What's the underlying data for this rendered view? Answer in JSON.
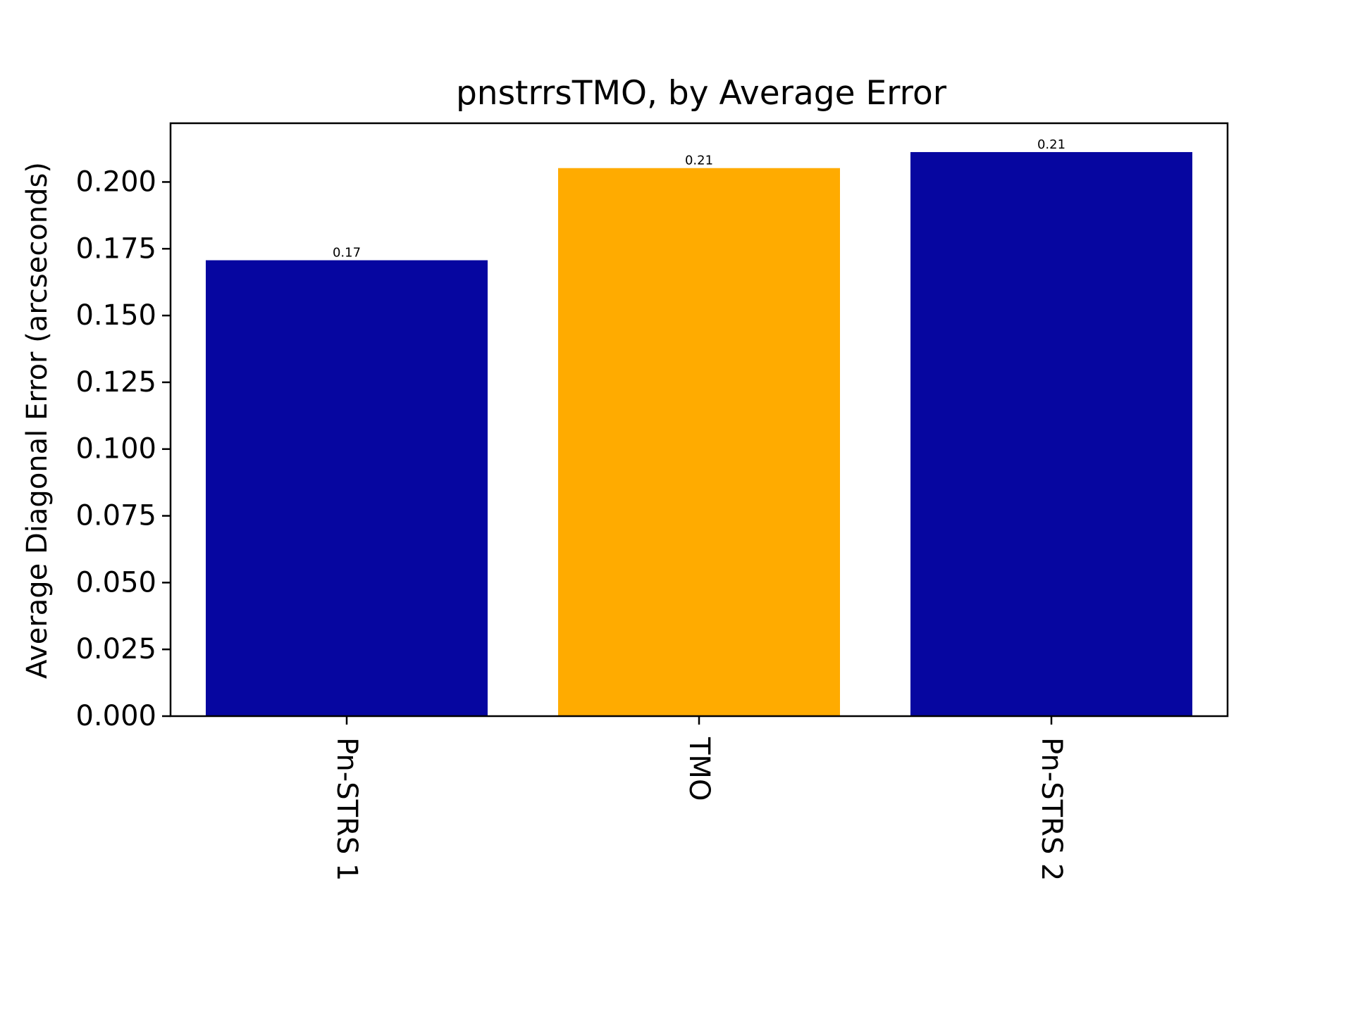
{
  "chart_data": {
    "type": "bar",
    "title": "pnstrrsTMO, by Average Error",
    "xlabel": "",
    "ylabel": "Average Diagonal Error (arcseconds)",
    "categories": [
      "Pn-STRS 1",
      "TMO",
      "Pn-STRS 2"
    ],
    "values": [
      0.1707,
      0.2052,
      0.2112
    ],
    "data_labels": [
      "0.17",
      "0.21",
      "0.21"
    ],
    "bar_colors": [
      "#0606a0",
      "#ffab00",
      "#0606a0"
    ],
    "ylim": [
      0,
      0.222
    ],
    "yticks": [
      0.0,
      0.025,
      0.05,
      0.075,
      0.1,
      0.125,
      0.15,
      0.175,
      0.2
    ],
    "ytick_labels": [
      "0.000",
      "0.025",
      "0.050",
      "0.075",
      "0.100",
      "0.125",
      "0.150",
      "0.175",
      "0.200"
    ],
    "xtick_rotation": "vertical",
    "grid": false,
    "legend": "none"
  }
}
